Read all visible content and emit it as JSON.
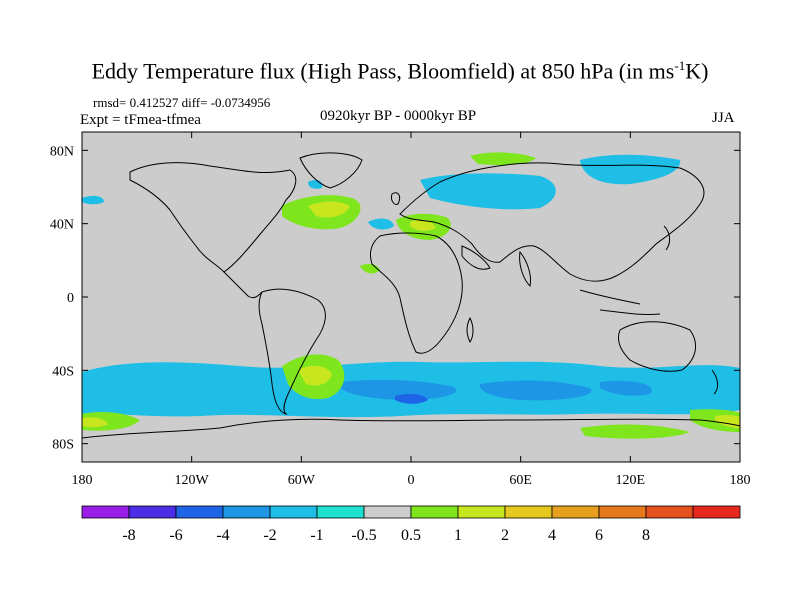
{
  "title": {
    "main": "Eddy Temperature flux (High Pass, Bloomfield) at 850 hPa (in ms",
    "sup": "-1",
    "end": "K)"
  },
  "stats": "rmsd= 0.412527 diff= -0.0734956",
  "expt": "Expt = tFmea-tfmea",
  "period": "0920kyr BP - 0000kyr BP",
  "season": "JJA",
  "map": {
    "background_color": "#cccccc",
    "x_ticks": [
      "180",
      "120W",
      "60W",
      "0",
      "60E",
      "120E",
      "180"
    ],
    "y_ticks": [
      "80N",
      "40N",
      "0",
      "40S",
      "80S"
    ]
  },
  "colorbar": {
    "colors": [
      "#9a1ee6",
      "#4b2ee6",
      "#1e64e6",
      "#1e96e6",
      "#1ebee6",
      "#1ee0d0",
      "#cccccc",
      "#7fe61e",
      "#c8e61e",
      "#e6c81e",
      "#e6a01e",
      "#e6781e",
      "#e6501e",
      "#e6281e"
    ],
    "labels": [
      "-8",
      "-6",
      "-4",
      "-2",
      "-1",
      "-0.5",
      "0.5",
      "1",
      "2",
      "4",
      "6",
      "8"
    ]
  }
}
